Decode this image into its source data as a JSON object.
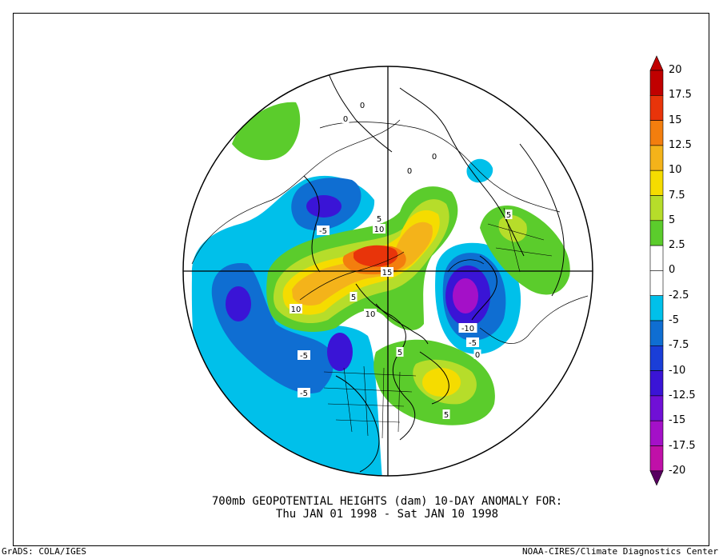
{
  "caption": {
    "line1": "700mb GEOPOTENTIAL HEIGHTS (dam)   10-DAY ANOMALY FOR:",
    "line2": "Thu JAN 01 1998 - Sat JAN 10 1998"
  },
  "footer": {
    "left": "GrADS: COLA/IGES",
    "right": "NOAA-CIRES/Climate Diagnostics Center"
  },
  "legend": {
    "levels": [
      {
        "label": "20",
        "color": "#c00000"
      },
      {
        "label": "17.5",
        "color": "#e8340a"
      },
      {
        "label": "15",
        "color": "#f37e0e"
      },
      {
        "label": "12.5",
        "color": "#f4b31a"
      },
      {
        "label": "10",
        "color": "#f5dc00"
      },
      {
        "label": "7.5",
        "color": "#b6dd2a"
      },
      {
        "label": "5",
        "color": "#5bcc2c"
      },
      {
        "label": "2.5",
        "color": "#ffffff"
      },
      {
        "label": "0",
        "color": "#ffffff"
      },
      {
        "label": "-2.5",
        "color": "#00c0ea"
      },
      {
        "label": "-5",
        "color": "#0f6ed2"
      },
      {
        "label": "-7.5",
        "color": "#1a3ed8"
      },
      {
        "label": "-10",
        "color": "#3a14d6"
      },
      {
        "label": "-12.5",
        "color": "#7010d6"
      },
      {
        "label": "-15",
        "color": "#a410c8"
      },
      {
        "label": "-17.5",
        "color": "#c010a8"
      },
      {
        "label": "-20",
        "color": "#7a0a6a"
      }
    ],
    "bottom_color": "#580060"
  },
  "contour_labels": [
    {
      "text": "0"
    },
    {
      "text": "0"
    },
    {
      "text": "0"
    },
    {
      "text": "0"
    },
    {
      "text": "-5"
    },
    {
      "text": "5"
    },
    {
      "text": "10"
    },
    {
      "text": "15"
    },
    {
      "text": "5"
    },
    {
      "text": "10"
    },
    {
      "text": "5"
    },
    {
      "text": "10"
    },
    {
      "text": "-5"
    },
    {
      "text": "-5"
    },
    {
      "text": "5"
    },
    {
      "text": "-10"
    },
    {
      "text": "-5"
    },
    {
      "text": "0"
    },
    {
      "text": "5"
    }
  ]
}
